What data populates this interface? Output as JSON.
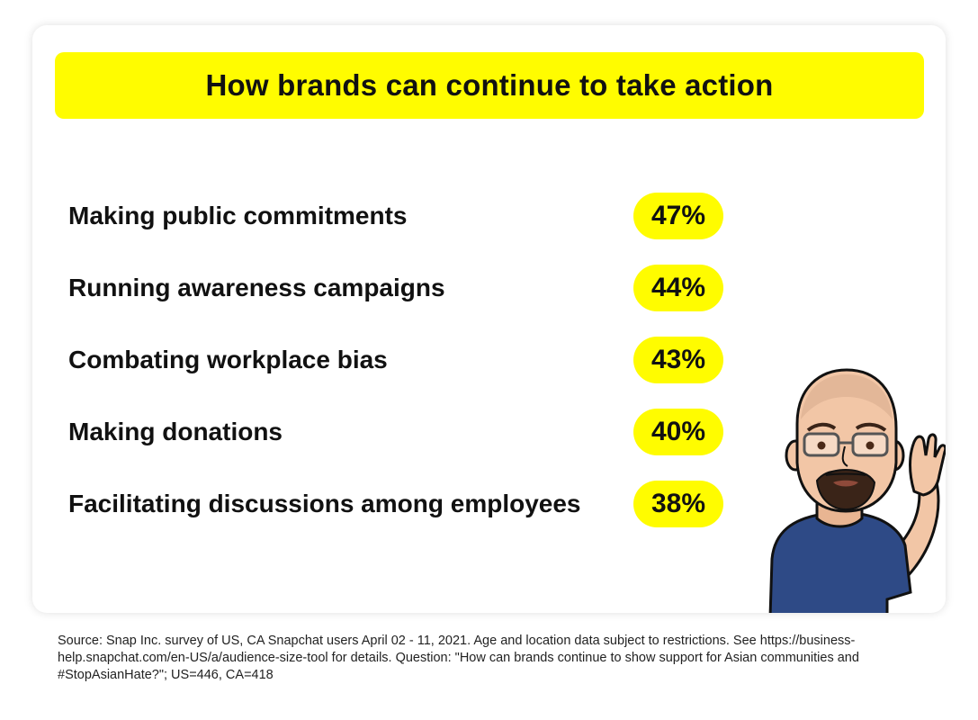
{
  "chart_data": {
    "type": "table",
    "title": "How brands can continue to take action",
    "categories": [
      "Making public commitments",
      "Running awareness campaigns",
      "Combating workplace bias",
      "Making donations",
      "Facilitating discussions among employees"
    ],
    "values": [
      47,
      44,
      43,
      40,
      38
    ],
    "value_labels": [
      "47%",
      "44%",
      "43%",
      "40%",
      "38%"
    ],
    "unit": "%"
  },
  "colors": {
    "accent": "#FFFC00",
    "text": "#111111",
    "shirt": "#2E4A86"
  },
  "illustration": "bitmoji-listening",
  "source_text": "Source: Snap Inc. survey of US, CA Snapchat users April 02 - 11, 2021. Age and location data subject to restrictions. See https://business-help.snapchat.com/en-US/a/audience-size-tool for details. Question: \"How can brands continue to show support for Asian communities and #StopAsianHate?\"; US=446, CA=418"
}
